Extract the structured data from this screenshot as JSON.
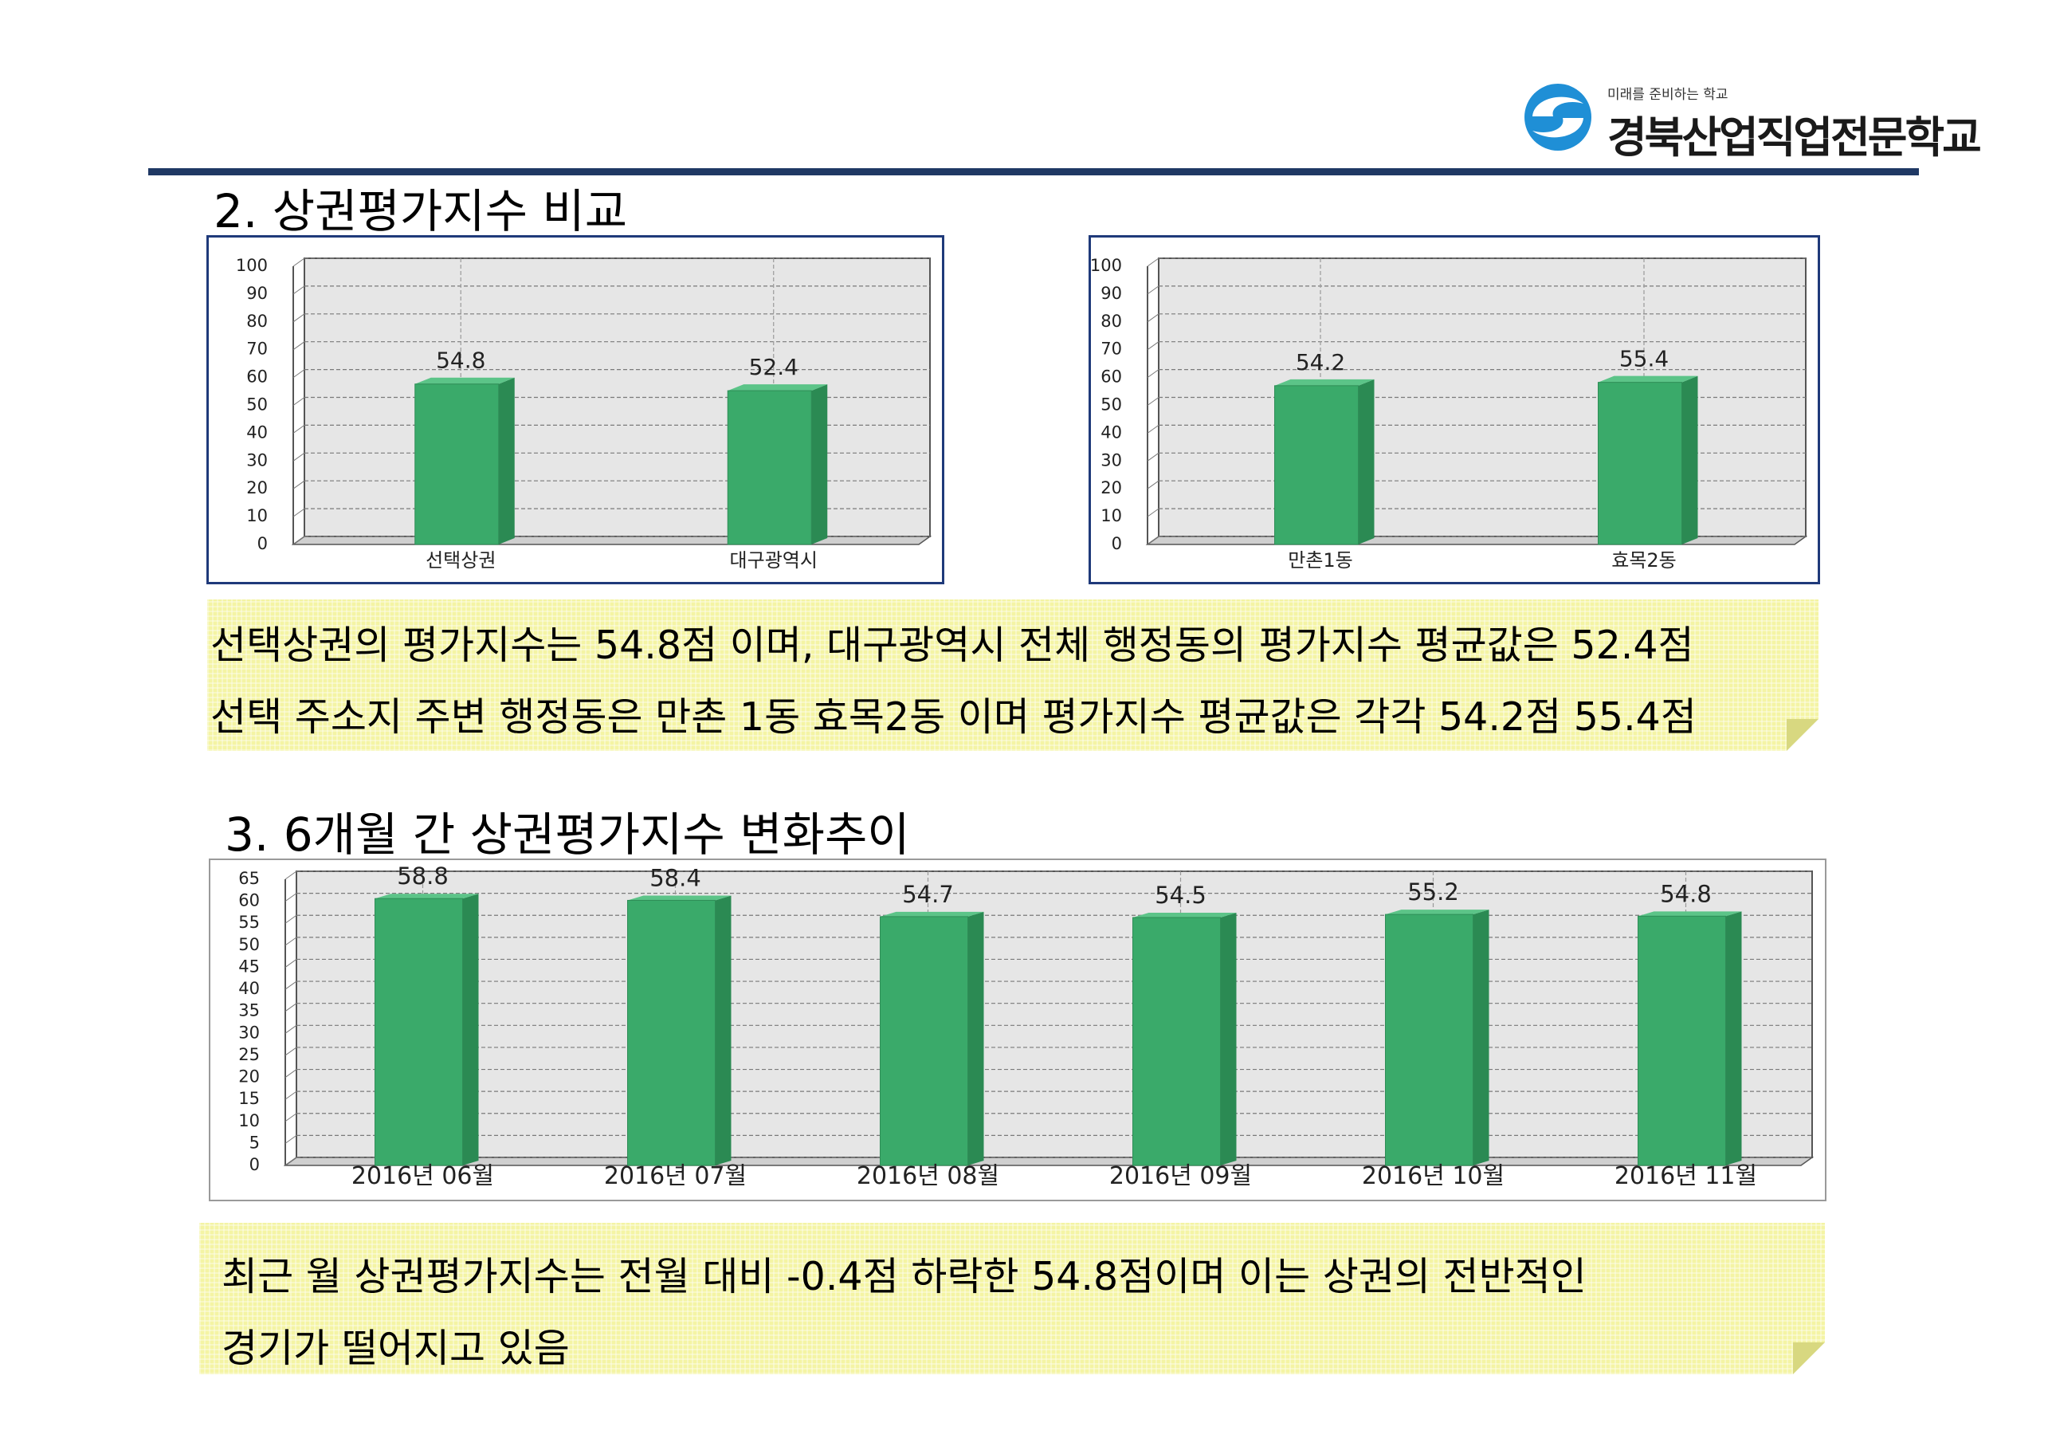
{
  "header": {
    "logo_tagline": "미래를 준비하는 학교",
    "logo_name": "경북산업직업전문학교"
  },
  "section2": {
    "heading": "2. 상권평가지수 비교",
    "note_lines": [
      "선택상권의 평가지수는 54.8점 이며, 대구광역시 전체 행정동의 평가지수 평균값은 52.4점",
      "선택 주소지 주변 행정동은 만촌 1동 효목2동 이며 평가지수 평균값은 각각 54.2점 55.4점"
    ]
  },
  "section3": {
    "heading": "3. 6개월 간 상권평가지수 변화추이",
    "note_lines": [
      "최근 월 상권평가지수는 전월 대비 -0.4점 하락한 54.8점이며 이는 상권의 전반적인",
      "경기가 떨어지고 있음"
    ]
  },
  "colors": {
    "bar": "#3aaa6a",
    "bar_side": "#2b8a53",
    "bar_top": "#5cc488",
    "plot_bg": "#e6e6e6",
    "border_blue": "#1f3a7a",
    "heading_rule": "#1f3864"
  },
  "chart_data": [
    {
      "type": "bar",
      "categories": [
        "선택상권",
        "대구광역시"
      ],
      "values": [
        54.8,
        52.4
      ],
      "data_labels": [
        "54.8",
        "52.4"
      ],
      "yticks": [
        "0",
        "10",
        "20",
        "30",
        "40",
        "50",
        "60",
        "70",
        "80",
        "90",
        "100"
      ],
      "ylim": [
        0,
        100
      ],
      "grid": true
    },
    {
      "type": "bar",
      "categories": [
        "만촌1동",
        "효목2동"
      ],
      "values": [
        54.2,
        55.4
      ],
      "data_labels": [
        "54.2",
        "55.4"
      ],
      "yticks": [
        "0",
        "10",
        "20",
        "30",
        "40",
        "50",
        "60",
        "70",
        "80",
        "90",
        "100"
      ],
      "ylim": [
        0,
        100
      ],
      "grid": true
    },
    {
      "type": "bar",
      "categories": [
        "2016년 06월",
        "2016년 07월",
        "2016년 08월",
        "2016년 09월",
        "2016년 10월",
        "2016년 11월"
      ],
      "values": [
        58.8,
        58.4,
        54.7,
        54.5,
        55.2,
        54.8
      ],
      "data_labels": [
        "58.8",
        "58.4",
        "54.7",
        "54.5",
        "55.2",
        "54.8"
      ],
      "yticks": [
        "0",
        "5",
        "10",
        "15",
        "20",
        "25",
        "30",
        "35",
        "40",
        "45",
        "50",
        "55",
        "60",
        "65"
      ],
      "ylim": [
        0,
        65
      ],
      "grid": true
    }
  ]
}
